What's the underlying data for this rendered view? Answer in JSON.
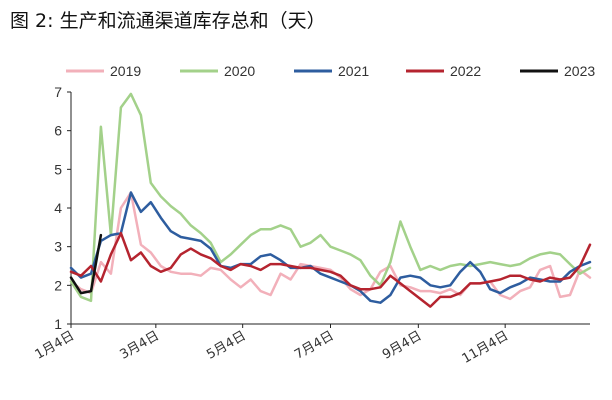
{
  "title": "图 2:  生产和流通渠道库存总和（天）",
  "chart_data": {
    "type": "line",
    "title": "图 2:  生产和流通渠道库存总和（天）",
    "ylim": [
      1,
      7
    ],
    "yticks": [
      1,
      2,
      3,
      4,
      5,
      6,
      7
    ],
    "xlim": [
      0,
      52
    ],
    "xticks": [
      {
        "label": "1月4日",
        "pos": 0
      },
      {
        "label": "3月4日",
        "pos": 8.5
      },
      {
        "label": "5月4日",
        "pos": 17.2
      },
      {
        "label": "7月4日",
        "pos": 26
      },
      {
        "label": "9月4日",
        "pos": 34.8
      },
      {
        "label": "11月4日",
        "pos": 43.5
      }
    ],
    "grid": false,
    "legend": "top",
    "series": [
      {
        "name": "2019",
        "color": "#f2b0ba",
        "x": [
          0,
          1,
          2,
          3,
          4,
          5,
          6,
          7,
          8,
          9,
          10,
          11,
          12,
          13,
          14,
          15,
          16,
          17,
          18,
          19,
          20,
          21,
          22,
          23,
          24,
          25,
          26,
          27,
          28,
          29,
          30,
          31,
          32,
          33,
          34,
          35,
          36,
          37,
          38,
          39,
          40,
          41,
          42,
          43,
          44,
          45,
          46,
          47,
          48,
          49,
          50,
          51,
          52
        ],
        "values": [
          2.1,
          1.9,
          1.8,
          2.6,
          2.3,
          4.0,
          4.4,
          3.05,
          2.85,
          2.5,
          2.35,
          2.3,
          2.3,
          2.25,
          2.45,
          2.4,
          2.15,
          1.95,
          2.15,
          1.85,
          1.75,
          2.3,
          2.15,
          2.55,
          2.5,
          2.45,
          2.4,
          2.2,
          1.9,
          1.75,
          1.9,
          2.35,
          2.5,
          2.0,
          1.95,
          1.85,
          1.85,
          1.8,
          1.9,
          1.75,
          2.05,
          2.05,
          2.1,
          1.75,
          1.65,
          1.85,
          1.95,
          2.4,
          2.5,
          1.7,
          1.75,
          2.4,
          2.2
        ]
      },
      {
        "name": "2020",
        "color": "#a3d18a",
        "x": [
          0,
          1,
          2,
          3,
          4,
          5,
          6,
          7,
          8,
          9,
          10,
          11,
          12,
          13,
          14,
          15,
          16,
          17,
          18,
          19,
          20,
          21,
          22,
          23,
          24,
          25,
          26,
          27,
          28,
          29,
          30,
          31,
          32,
          33,
          34,
          35,
          36,
          37,
          38,
          39,
          40,
          41,
          42,
          43,
          44,
          45,
          46,
          47,
          48,
          49,
          50,
          51,
          52
        ],
        "values": [
          2.1,
          1.7,
          1.6,
          6.1,
          3.3,
          6.6,
          6.95,
          6.4,
          4.65,
          4.3,
          4.05,
          3.85,
          3.55,
          3.35,
          3.1,
          2.6,
          2.8,
          3.05,
          3.3,
          3.45,
          3.45,
          3.55,
          3.45,
          3.0,
          3.1,
          3.3,
          3.0,
          2.9,
          2.8,
          2.65,
          2.25,
          2.0,
          2.6,
          3.65,
          3.0,
          2.4,
          2.5,
          2.4,
          2.5,
          2.55,
          2.5,
          2.55,
          2.6,
          2.55,
          2.5,
          2.55,
          2.7,
          2.8,
          2.85,
          2.8,
          2.55,
          2.3,
          2.45
        ]
      },
      {
        "name": "2021",
        "color": "#2e5d9f",
        "x": [
          0,
          1,
          2,
          3,
          4,
          5,
          6,
          7,
          8,
          9,
          10,
          11,
          12,
          13,
          14,
          15,
          16,
          17,
          18,
          19,
          20,
          21,
          22,
          23,
          24,
          25,
          26,
          27,
          28,
          29,
          30,
          31,
          32,
          33,
          34,
          35,
          36,
          37,
          38,
          39,
          40,
          41,
          42,
          43,
          44,
          45,
          46,
          47,
          48,
          49,
          50,
          51,
          52
        ],
        "values": [
          2.45,
          2.2,
          2.3,
          3.15,
          3.3,
          3.35,
          4.4,
          3.9,
          4.15,
          3.75,
          3.4,
          3.25,
          3.2,
          3.15,
          2.95,
          2.5,
          2.45,
          2.55,
          2.55,
          2.75,
          2.8,
          2.65,
          2.45,
          2.45,
          2.5,
          2.3,
          2.2,
          2.1,
          2.0,
          1.85,
          1.6,
          1.55,
          1.75,
          2.2,
          2.25,
          2.2,
          2.0,
          1.95,
          2.0,
          2.35,
          2.6,
          2.35,
          1.9,
          1.8,
          1.95,
          2.05,
          2.2,
          2.15,
          2.1,
          2.1,
          2.35,
          2.5,
          2.6
        ]
      },
      {
        "name": "2022",
        "color": "#b5242f",
        "x": [
          0,
          1,
          2,
          3,
          4,
          5,
          6,
          7,
          8,
          9,
          10,
          11,
          12,
          13,
          14,
          15,
          16,
          17,
          18,
          19,
          20,
          21,
          22,
          23,
          24,
          25,
          26,
          27,
          28,
          29,
          30,
          31,
          32,
          33,
          34,
          35,
          36,
          37,
          38,
          39,
          40,
          41,
          42,
          43,
          44,
          45,
          46,
          47,
          48,
          49,
          50,
          51,
          52
        ],
        "values": [
          2.35,
          2.25,
          2.5,
          2.1,
          2.8,
          3.35,
          2.65,
          2.85,
          2.5,
          2.35,
          2.45,
          2.8,
          2.95,
          2.8,
          2.7,
          2.5,
          2.4,
          2.55,
          2.5,
          2.4,
          2.55,
          2.55,
          2.5,
          2.45,
          2.45,
          2.4,
          2.35,
          2.25,
          2.0,
          1.9,
          1.9,
          1.95,
          2.25,
          2.05,
          1.85,
          1.65,
          1.45,
          1.7,
          1.7,
          1.8,
          2.05,
          2.05,
          2.1,
          2.15,
          2.25,
          2.25,
          2.15,
          2.1,
          2.2,
          2.15,
          2.2,
          2.5,
          3.05
        ]
      },
      {
        "name": "2023",
        "color": "#111111",
        "x": [
          0,
          1,
          2,
          3
        ],
        "values": [
          2.2,
          1.8,
          1.85,
          3.3
        ]
      }
    ]
  }
}
